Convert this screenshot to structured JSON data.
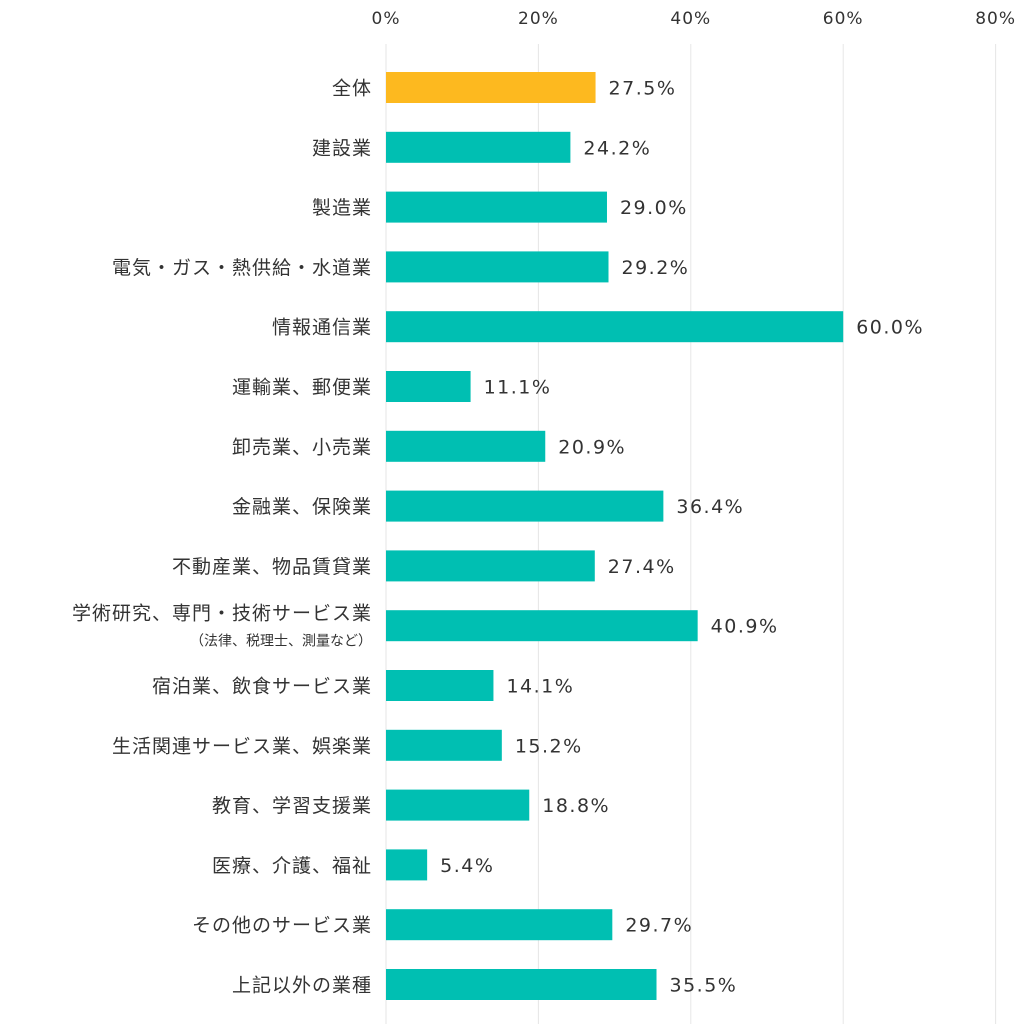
{
  "chart_data": {
    "type": "bar",
    "orientation": "horizontal",
    "x_ticks": [
      0,
      20,
      40,
      60,
      80
    ],
    "x_tick_labels": [
      "0%",
      "20%",
      "40%",
      "60%",
      "80%"
    ],
    "xlim": [
      0,
      80
    ],
    "axis_position": "top",
    "grid": true,
    "legend": "none",
    "colors": {
      "highlight": "#FDB91F",
      "default": "#00BFB2",
      "grid": "#E6E6E6",
      "text": "#333333"
    },
    "categories": [
      "全体",
      "建設業",
      "製造業",
      "電気・ガス・熱供給・水道業",
      "情報通信業",
      "運輸業、郵便業",
      "卸売業、小売業",
      "金融業、保険業",
      "不動産業、物品賃貸業",
      "学術研究、専門・技術サービス業",
      "宿泊業、飲食サービス業",
      "生活関連サービス業、娯楽業",
      "教育、学習支援業",
      "医療、介護、福祉",
      "その他のサービス業",
      "上記以外の業種"
    ],
    "sublabels": [
      "",
      "",
      "",
      "",
      "",
      "",
      "",
      "",
      "",
      "（法律、税理士、測量など）",
      "",
      "",
      "",
      "",
      "",
      ""
    ],
    "values": [
      27.5,
      24.2,
      29.0,
      29.2,
      60.0,
      11.1,
      20.9,
      36.4,
      27.4,
      40.9,
      14.1,
      15.2,
      18.8,
      5.4,
      29.7,
      35.5
    ],
    "value_labels": [
      "27.5%",
      "24.2%",
      "29.0%",
      "29.2%",
      "60.0%",
      "11.1%",
      "20.9%",
      "36.4%",
      "27.4%",
      "40.9%",
      "14.1%",
      "15.2%",
      "18.8%",
      "5.4%",
      "29.7%",
      "35.5%"
    ],
    "highlight_index": 0
  }
}
